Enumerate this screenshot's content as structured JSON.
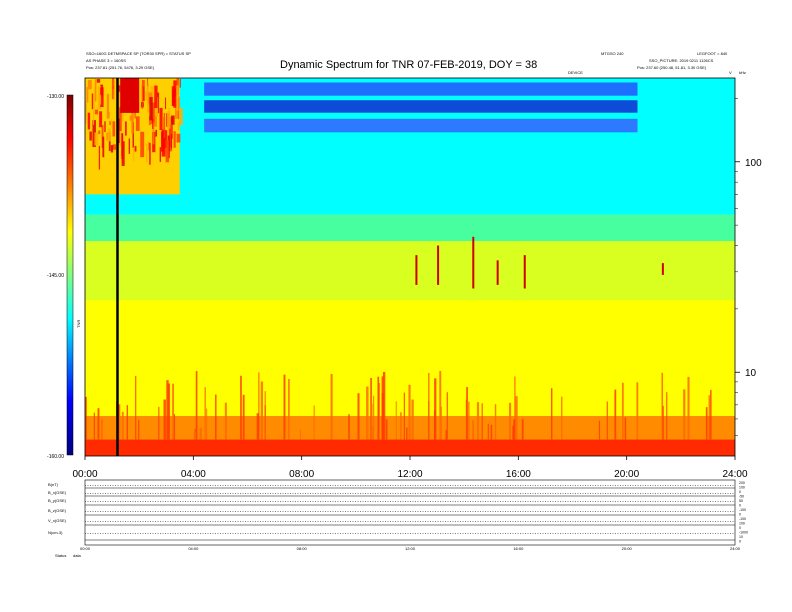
{
  "header": {
    "title": "Dynamic Spectrum for TNR 07-FEB-2019, DOY = 38",
    "left_line1": "SSO=160G DETMSPACE SP (TOR30 SPR) = STATUS SP",
    "left_line2": "AS PHASE 3 = 160SS",
    "left_line3": "Pos: 237.81 (251.76, 5476, 3.29 GSE)",
    "right_line0": "MTGSO 240",
    "right_line0b": "LEGFOOT = 840",
    "right_line1": "SSO_PICTURE: 2019 0211 1126CS",
    "right_line2": "Pos: 237.60 (250.48, 51.81, 3.30 GSE)",
    "center_small": "DEVICE",
    "khz_label": "kHz",
    "v_label": "V"
  },
  "colorbar": {
    "label": "TNR",
    "ticks": [
      "-130.00",
      "-145.00",
      "-160.00"
    ]
  },
  "bottom": {
    "panel_labels": [
      "B(nT)",
      "B_x(GSE)",
      "B_y(GSE)",
      "B_z(GSE)",
      "V_x(GSE)",
      "N(cm-3)"
    ],
    "right_labels": [
      "200",
      "100",
      "0",
      "-50",
      "50",
      "0",
      "-100",
      "0",
      "-100",
      "100",
      "0",
      "-1000",
      "10",
      "0"
    ],
    "status_label": "Status",
    "status_value": "data",
    "mini_ticks": [
      "00:00",
      "04:00",
      "08:00",
      "12:00",
      "16:00",
      "20:00",
      "24:00"
    ]
  },
  "chart_data": {
    "type": "heatmap",
    "title": "Dynamic Spectrum for TNR 07-FEB-2019, DOY = 38",
    "x_ticks": [
      "00:00",
      "04:00",
      "08:00",
      "12:00",
      "16:00",
      "20:00",
      "24:00"
    ],
    "xlim": [
      0,
      24
    ],
    "y_scale": "log",
    "y_ticks": [
      {
        "label": "100",
        "value": 100
      },
      {
        "label": "10",
        "value": 10
      }
    ],
    "ylim": [
      4,
      250
    ],
    "color_scale": {
      "min": -160,
      "max": -130,
      "ticks": [
        -130,
        -145,
        -160
      ],
      "colors": [
        "#00007f",
        "#0000ff",
        "#00ffff",
        "#ffff00",
        "#ff0000",
        "#7f0000"
      ]
    },
    "grid": false,
    "legend": "none",
    "bands": [
      {
        "name": "low-noise-red",
        "ylo": 4,
        "yhi": 4.8,
        "color": "#ff2a00"
      },
      {
        "name": "low-orange",
        "ylo": 4.8,
        "yhi": 6.2,
        "color": "#ff8c00"
      },
      {
        "name": "yellow",
        "ylo": 6.2,
        "yhi": 22,
        "color": "#ffff00"
      },
      {
        "name": "yellow-green",
        "ylo": 22,
        "yhi": 42,
        "color": "#d8ff20"
      },
      {
        "name": "green",
        "ylo": 42,
        "yhi": 56,
        "color": "#48ffa0"
      },
      {
        "name": "cyan",
        "ylo": 56,
        "yhi": 250,
        "color": "#00ffff"
      }
    ],
    "blue_bands": [
      {
        "x0": 4.4,
        "x1": 20.4,
        "ylo": 206,
        "yhi": 238,
        "color": "#1f6fff"
      },
      {
        "x0": 4.4,
        "x1": 20.4,
        "ylo": 171,
        "yhi": 196,
        "color": "#0d4bd8"
      },
      {
        "x0": 4.4,
        "x1": 20.4,
        "ylo": 138,
        "yhi": 160,
        "color": "#2d7aff"
      }
    ],
    "storm_region": {
      "x0": 0.0,
      "x1": 3.5,
      "ylo": 70,
      "yhi": 250
    },
    "spikes": [
      {
        "x": 12.2,
        "ylo": 26,
        "yhi": 36
      },
      {
        "x": 13.0,
        "ylo": 26,
        "yhi": 40
      },
      {
        "x": 14.3,
        "ylo": 25,
        "yhi": 44
      },
      {
        "x": 15.2,
        "ylo": 26,
        "yhi": 34
      },
      {
        "x": 16.2,
        "ylo": 25,
        "yhi": 36
      },
      {
        "x": 21.3,
        "ylo": 29,
        "yhi": 33
      }
    ],
    "marker_line_x": 1.2
  }
}
